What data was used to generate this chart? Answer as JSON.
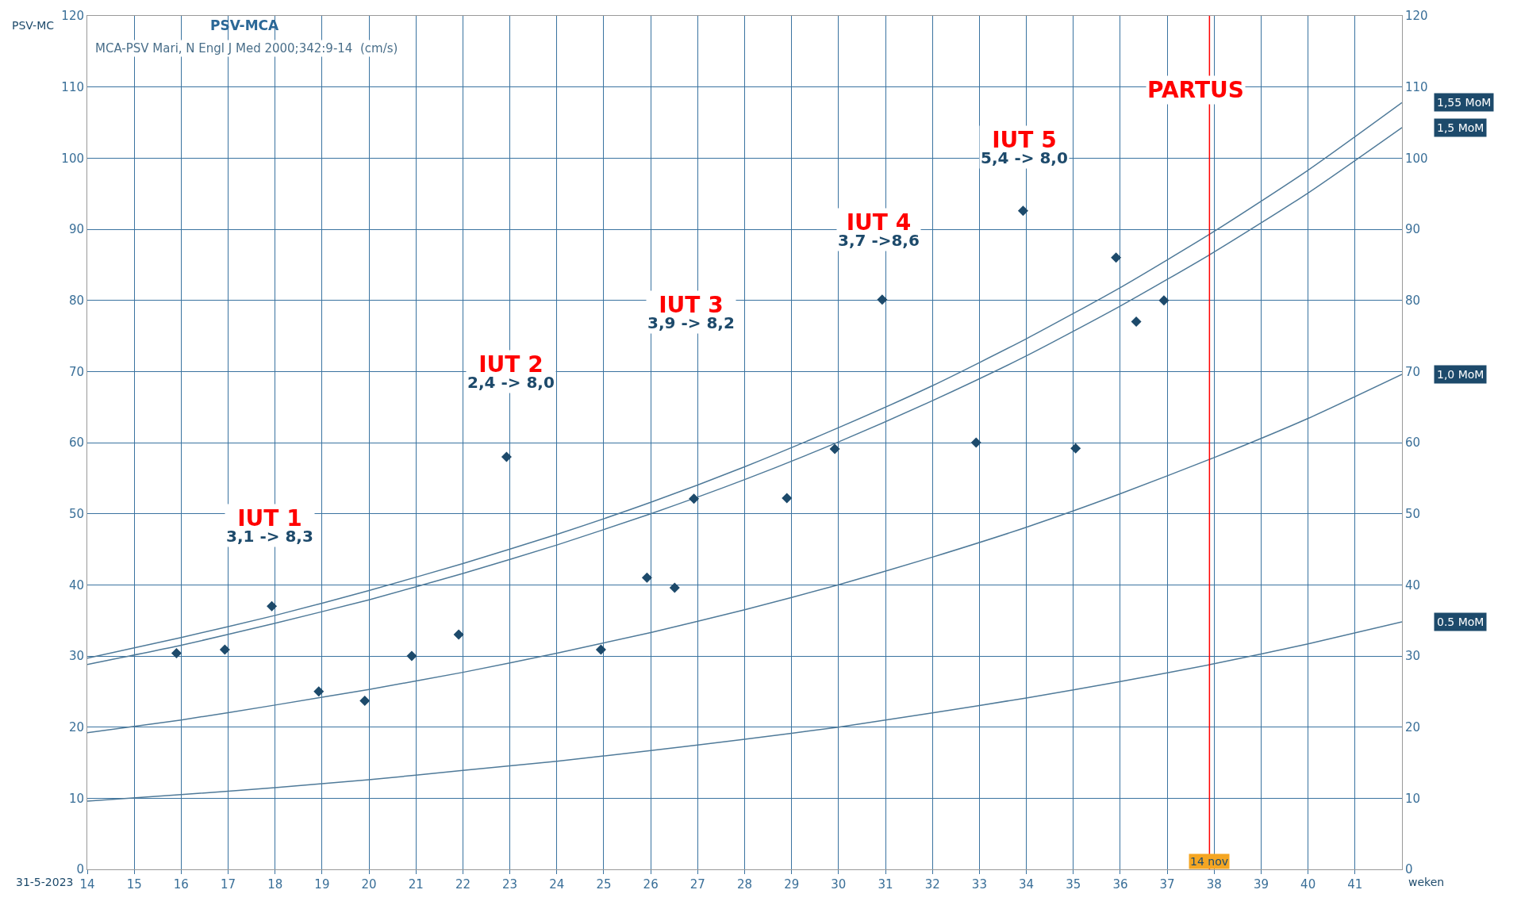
{
  "chart_data": {
    "type": "line",
    "title": "PSV-MCA",
    "subtitle": "MCA-PSV Mari, N Engl J Med 2000;342:9-14  (cm/s)",
    "xlabel": "weken",
    "ylabel": "PSV-MC",
    "xlim": [
      14,
      42
    ],
    "xticks": [
      14,
      15,
      16,
      17,
      18,
      19,
      20,
      21,
      22,
      23,
      24,
      25,
      26,
      27,
      28,
      29,
      30,
      31,
      32,
      33,
      34,
      35,
      36,
      37,
      38,
      39,
      40,
      41
    ],
    "ylim": [
      0,
      120
    ],
    "yticks": [
      0,
      10,
      20,
      30,
      40,
      50,
      60,
      70,
      80,
      90,
      100,
      110,
      120
    ],
    "y2lim": [
      0,
      120
    ],
    "y2ticks": [
      0,
      10,
      20,
      30,
      40,
      50,
      60,
      70,
      80,
      90,
      100,
      110,
      120
    ],
    "grid": true,
    "legend": false,
    "line_style": "solid",
    "series": [
      {
        "name": "1,55 MoM",
        "color": "#4f7a99",
        "x": [
          14,
          16,
          18,
          20,
          22,
          24,
          26,
          28,
          30,
          32,
          34,
          36,
          38,
          40,
          42
        ],
        "values": [
          29.7,
          32.6,
          35.7,
          39.2,
          43.0,
          47.1,
          51.6,
          56.6,
          62.1,
          68.0,
          74.6,
          81.8,
          89.7,
          98.3,
          107.8
        ]
      },
      {
        "name": "1,5 MoM",
        "color": "#4f7a99",
        "x": [
          14,
          16,
          18,
          20,
          22,
          24,
          26,
          28,
          30,
          32,
          34,
          36,
          38,
          40,
          42
        ],
        "values": [
          28.8,
          31.5,
          34.6,
          37.9,
          41.6,
          45.6,
          50.0,
          54.8,
          60.1,
          65.9,
          72.2,
          79.2,
          86.8,
          95.1,
          104.3
        ]
      },
      {
        "name": "1,0 MoM",
        "color": "#4f7a99",
        "x": [
          14,
          16,
          18,
          20,
          22,
          24,
          26,
          28,
          30,
          32,
          34,
          36,
          38,
          40,
          42
        ],
        "values": [
          19.2,
          21.0,
          23.1,
          25.3,
          27.7,
          30.4,
          33.3,
          36.5,
          40.0,
          43.9,
          48.1,
          52.8,
          57.9,
          63.4,
          69.6
        ]
      },
      {
        "name": "0.5 MoM",
        "color": "#4f7a99",
        "x": [
          14,
          16,
          18,
          20,
          22,
          24,
          26,
          28,
          30,
          32,
          34,
          36,
          38,
          40,
          42
        ],
        "values": [
          9.6,
          10.5,
          11.5,
          12.6,
          13.9,
          15.2,
          16.7,
          18.3,
          20.0,
          22.0,
          24.1,
          26.4,
          28.9,
          31.7,
          34.8
        ]
      },
      {
        "type": "scatter",
        "marker": "diamond",
        "color": "#1d4a6b",
        "x": [
          15.9,
          16.93,
          17.93,
          18.93,
          19.91,
          20.91,
          21.91,
          22.93,
          24.94,
          25.92,
          26.51,
          26.92,
          28.9,
          29.92,
          30.93,
          32.93,
          33.93,
          35.05,
          35.91,
          36.34,
          36.93
        ],
        "values": [
          30.4,
          30.9,
          37.0,
          25.0,
          23.7,
          30.0,
          33.0,
          58.0,
          30.9,
          41.0,
          39.6,
          52.1,
          52.2,
          59.1,
          80.1,
          60.0,
          92.6,
          59.2,
          86.0,
          77.0,
          80.0
        ]
      }
    ],
    "ref_lines": [
      {
        "axis": "x",
        "value": 37.9,
        "label": "14 nov",
        "color": "#ff0000"
      }
    ],
    "annotations": [
      "IUT 1\n3,1 -> 8,3",
      "IUT 2\n2,4 -> 8,0",
      "IUT 3\n3,9 -> 8,2",
      "IUT 4\n3,7 ->8,6",
      "IUT 5\n5,4 -> 8,0",
      "PARTUS",
      "31-5-2023"
    ]
  }
}
